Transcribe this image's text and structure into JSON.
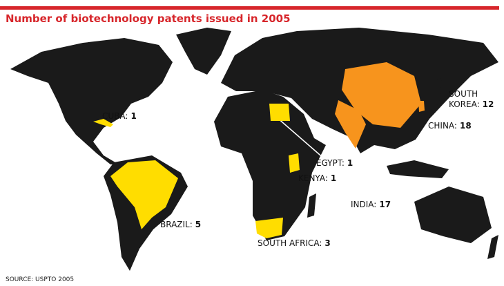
{
  "title": "Number of biotechnology patents issued in 2005",
  "source": "SOURCE: USPTO 2005",
  "countries": [
    {
      "name_lines": [
        "CUBA:"
      ],
      "value": 1,
      "color": "#ffdd00"
    },
    {
      "name_lines": [
        "SOUTH",
        "KOREA:"
      ],
      "value": 12,
      "color": "#f7941d"
    },
    {
      "name_lines": [
        "CHINA:"
      ],
      "value": 18,
      "color": "#f7941d"
    },
    {
      "name_lines": [
        "EGYPT:"
      ],
      "value": 1,
      "color": "#ffdd00"
    },
    {
      "name_lines": [
        "KENYA:"
      ],
      "value": 1,
      "color": "#ffdd00"
    },
    {
      "name_lines": [
        "INDIA:"
      ],
      "value": 17,
      "color": "#f7941d"
    },
    {
      "name_lines": [
        "BRAZIL:"
      ],
      "value": 5,
      "color": "#ffdd00"
    },
    {
      "name_lines": [
        "SOUTH AFRICA:"
      ],
      "value": 3,
      "color": "#ffdd00"
    }
  ]
}
